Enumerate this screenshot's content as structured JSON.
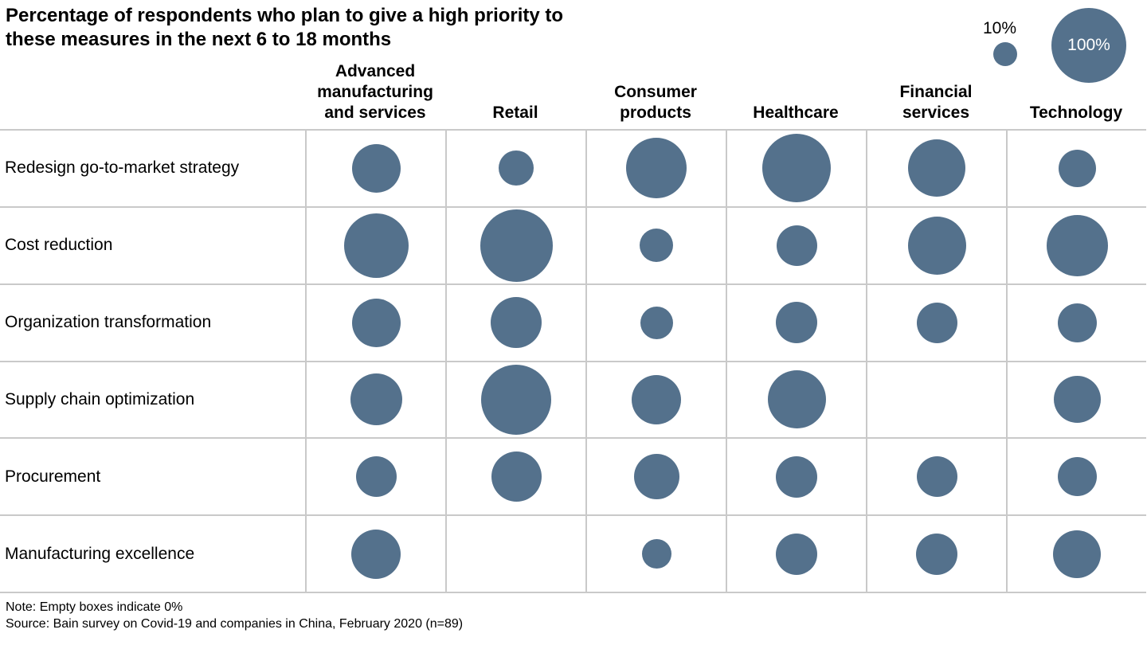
{
  "title": "Percentage of respondents who plan to give a high priority to these measures in the next 6 to 18 months",
  "legend": {
    "small_label": "10%",
    "small_pct": 10,
    "large_label": "100%",
    "large_pct": 100
  },
  "chart_data": {
    "type": "heatmap",
    "subtype": "bubble-matrix",
    "title": "Percentage of respondents who plan to give a high priority to these measures in the next 6 to 18 months",
    "unit": "percent of respondents",
    "columns": [
      "Advanced manufacturing and services",
      "Retail",
      "Consumer products",
      "Healthcare",
      "Financial services",
      "Technology"
    ],
    "rows": [
      "Redesign go-to-market strategy",
      "Cost reduction",
      "Organization transformation",
      "Supply chain optimization",
      "Procurement",
      "Manufacturing excellence"
    ],
    "values": [
      [
        43,
        22,
        66,
        85,
        60,
        26
      ],
      [
        76,
        95,
        20,
        30,
        61,
        69
      ],
      [
        43,
        47,
        19,
        31,
        30,
        28
      ],
      [
        49,
        90,
        44,
        62,
        0,
        40
      ],
      [
        30,
        46,
        37,
        31,
        30,
        28
      ],
      [
        44,
        0,
        16,
        31,
        31,
        41
      ]
    ],
    "scale": {
      "legend_reference_pcts": [
        10,
        100
      ],
      "note": "bubble area proportional to value; empty cell = 0%"
    },
    "legend_position": "top-right",
    "grid": true
  },
  "footer": {
    "note": "Note: Empty boxes indicate 0%",
    "source": "Source: Bain survey on Covid-19 and companies in China, February 2020 (n=89)"
  },
  "colors": {
    "bubble": "#54718C",
    "grid": "#C9C9C9",
    "text": "#000000"
  }
}
